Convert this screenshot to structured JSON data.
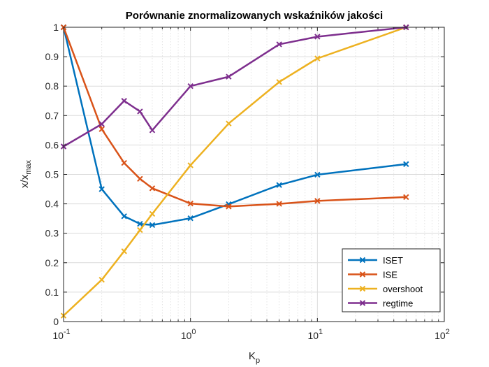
{
  "chart_data": {
    "type": "line",
    "title": "Porównanie znormalizowanych wskaźników jakości",
    "xlabel_main": "K",
    "xlabel_sub": "p",
    "ylabel_main": "x/x",
    "ylabel_sub": "max",
    "xscale": "log",
    "xlim": [
      0.1,
      100
    ],
    "ylim": [
      0,
      1
    ],
    "grid": true,
    "legend_position": "bottom-right",
    "x": [
      0.1,
      0.2,
      0.3,
      0.4,
      0.5,
      1,
      2,
      5,
      10,
      50
    ],
    "xtick_labels": [
      {
        "base": "10",
        "exp": "-1"
      },
      {
        "base": "10",
        "exp": "0"
      },
      {
        "base": "10",
        "exp": "1"
      },
      {
        "base": "10",
        "exp": "2"
      }
    ],
    "ytick_labels": [
      "0",
      "0.1",
      "0.2",
      "0.3",
      "0.4",
      "0.5",
      "0.6",
      "0.7",
      "0.8",
      "0.9",
      "1"
    ],
    "series": [
      {
        "name": "ISET",
        "color": "#0072BD",
        "values": [
          1.0,
          0.45,
          0.358,
          0.332,
          0.328,
          0.351,
          0.399,
          0.464,
          0.499,
          0.535
        ]
      },
      {
        "name": "ISE",
        "color": "#D95319",
        "values": [
          1.0,
          0.654,
          0.539,
          0.485,
          0.453,
          0.401,
          0.391,
          0.4,
          0.41,
          0.423
        ]
      },
      {
        "name": "overshoot",
        "color": "#EDB120",
        "values": [
          0.02,
          0.142,
          0.239,
          0.311,
          0.366,
          0.531,
          0.673,
          0.814,
          0.894,
          1.0
        ]
      },
      {
        "name": "regtime",
        "color": "#7E2F8E",
        "values": [
          0.595,
          0.671,
          0.75,
          0.714,
          0.65,
          0.8,
          0.832,
          0.942,
          0.968,
          1.0
        ]
      }
    ]
  }
}
